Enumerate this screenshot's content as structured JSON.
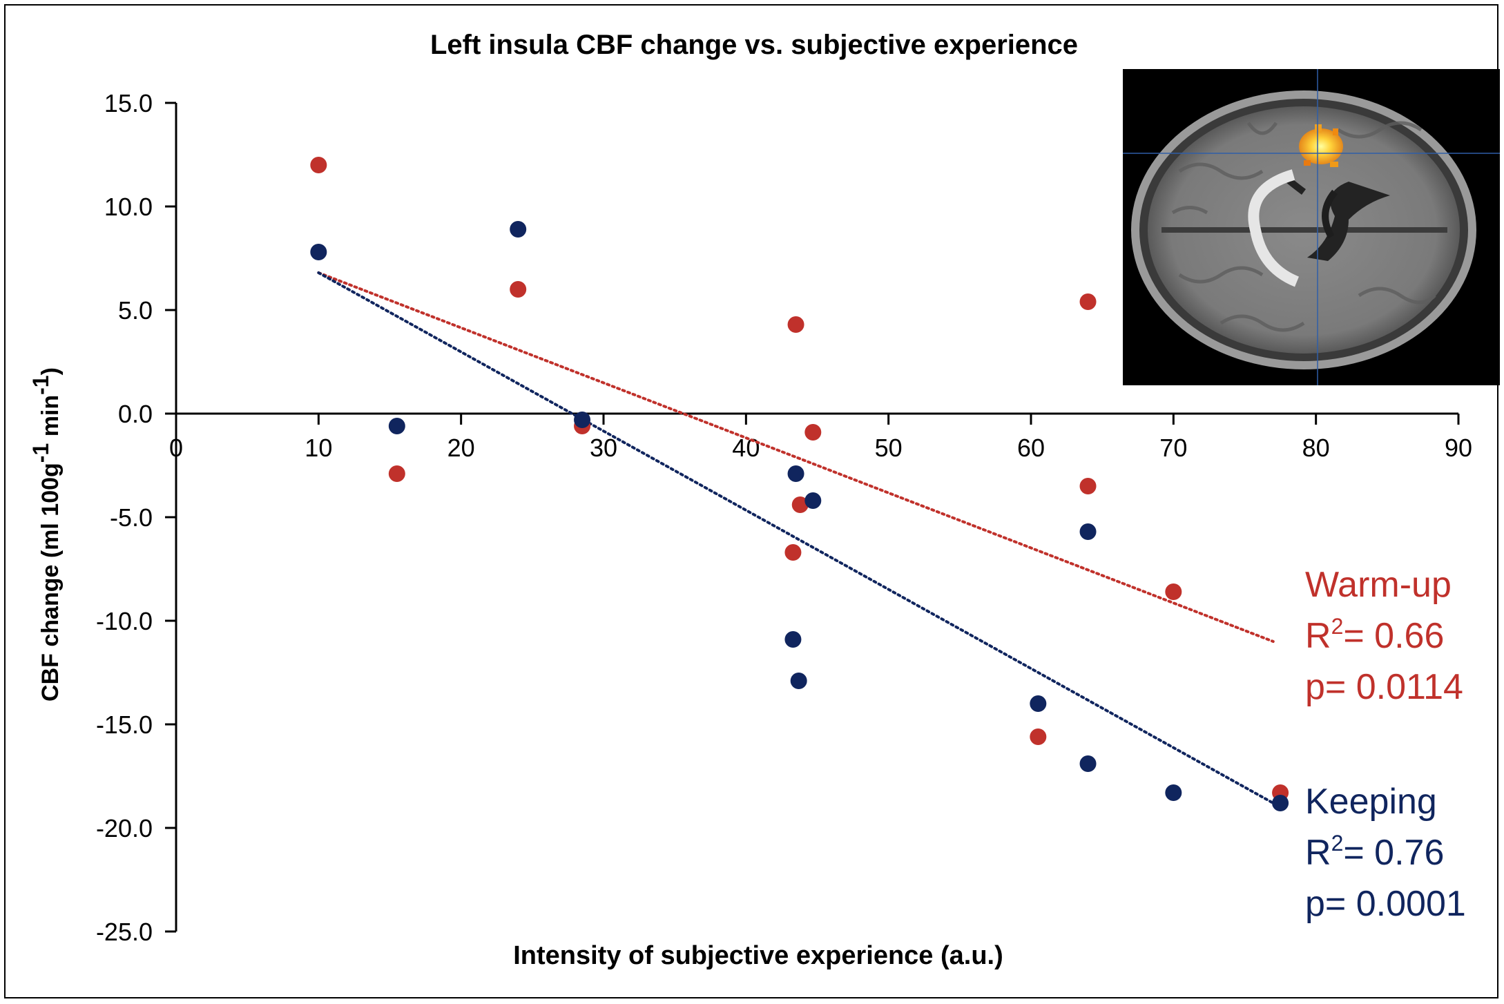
{
  "chart_data": {
    "type": "scatter",
    "title": "Left insula CBF change vs. subjective experience",
    "xlabel": "Intensity of subjective experience (a.u.)",
    "ylabel": "CBF change (ml 100g-1 min-1)",
    "ylabel_parts": {
      "main": "CBF change (ml 100g",
      "exp1": "-1",
      "mid": " min",
      "exp2": "-1",
      "end": ")"
    },
    "xlim": [
      0,
      90
    ],
    "ylim": [
      -25,
      15
    ],
    "xticks": [
      0,
      10,
      20,
      30,
      40,
      50,
      60,
      70,
      80,
      90
    ],
    "yticks": [
      15,
      10,
      5,
      0,
      -5,
      -10,
      -15,
      -20,
      -25
    ],
    "ytick_labels": [
      "15.0",
      "10.0",
      "5.0",
      "0.0",
      "-5.0",
      "-10.0",
      "-15.0",
      "-20.0",
      "-25.0"
    ],
    "series": [
      {
        "name": "Warm-up",
        "color": "#c0312b",
        "points": [
          [
            10,
            12.0
          ],
          [
            15.5,
            -2.9
          ],
          [
            24,
            6.0
          ],
          [
            28.5,
            -0.6
          ],
          [
            43.5,
            4.3
          ],
          [
            43.8,
            -4.4
          ],
          [
            44.7,
            -0.9
          ],
          [
            43.3,
            -6.7
          ],
          [
            64,
            5.4
          ],
          [
            64,
            -3.5
          ],
          [
            70,
            -8.6
          ],
          [
            60.5,
            -15.6
          ],
          [
            77.5,
            -18.3
          ]
        ],
        "trend": {
          "x": [
            10,
            77
          ],
          "y": [
            6.8,
            -11.0
          ]
        },
        "legend": {
          "name": "Warm-up",
          "r2_prefix": "R",
          "r2_exp": "2",
          "r2_value": "= 0.66",
          "p": "p= 0.0114"
        }
      },
      {
        "name": "Keeping",
        "color": "#10255e",
        "points": [
          [
            10,
            7.8
          ],
          [
            15.5,
            -0.6
          ],
          [
            24,
            8.9
          ],
          [
            28.5,
            -0.3
          ],
          [
            43.5,
            -2.9
          ],
          [
            44.7,
            -4.2
          ],
          [
            43.3,
            -10.9
          ],
          [
            43.7,
            -12.9
          ],
          [
            60.5,
            -14.0
          ],
          [
            64,
            -5.7
          ],
          [
            64,
            -16.9
          ],
          [
            70,
            -18.3
          ],
          [
            77.5,
            -18.8
          ]
        ],
        "trend": {
          "x": [
            10,
            77
          ],
          "y": [
            6.8,
            -18.8
          ]
        },
        "legend": {
          "name": "Keeping",
          "r2_prefix": "R",
          "r2_exp": "2",
          "r2_value": "= 0.76",
          "p": "p= 0.0001"
        }
      }
    ],
    "inset": "axial brain MRI slice with CBF activation cluster"
  }
}
